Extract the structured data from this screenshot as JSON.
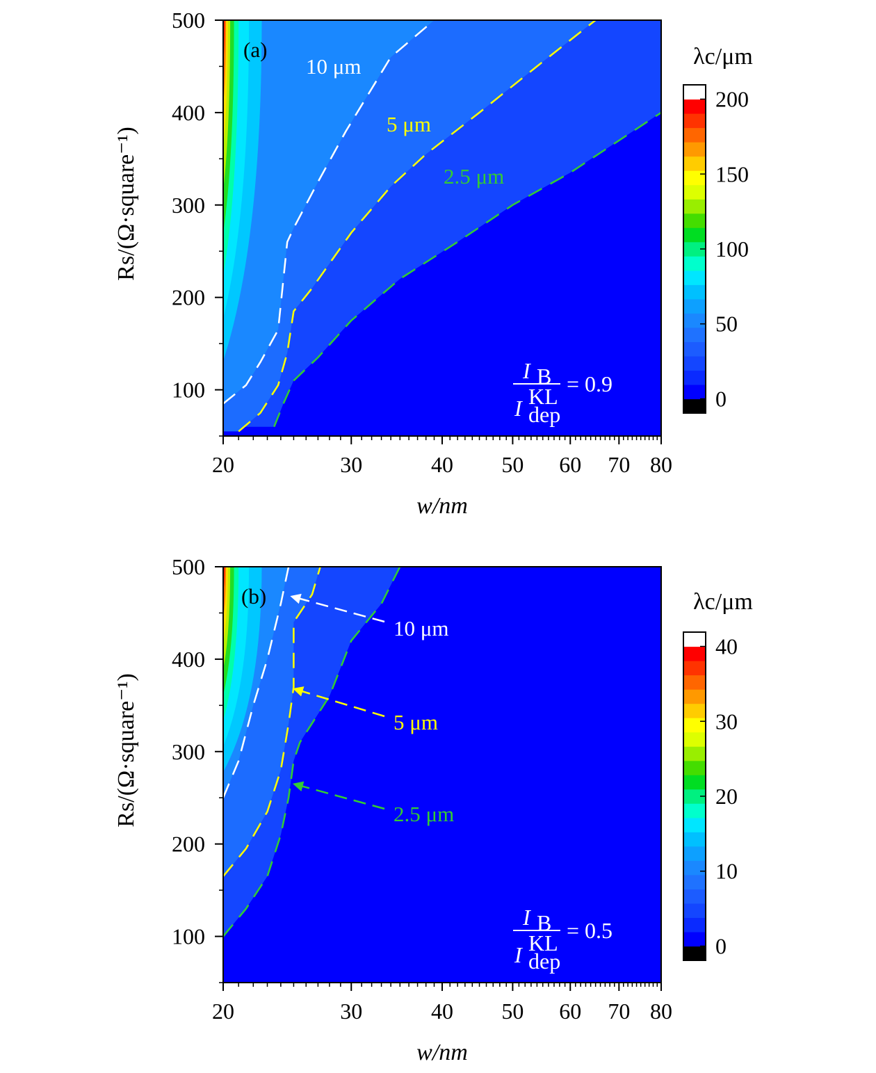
{
  "colors": {
    "background_blue": "#0000ff",
    "contour_white": "#ffffff",
    "contour_yellow": "#ffff00",
    "contour_green": "#33cc33",
    "colormap": [
      "#000000",
      "#0000ff",
      "#0a2aff",
      "#1446ff",
      "#1c5cff",
      "#1f72ff",
      "#1a88ff",
      "#0da0ff",
      "#00c0ff",
      "#00e6ff",
      "#00ffcc",
      "#00f080",
      "#00dd22",
      "#44dd00",
      "#99ee00",
      "#ddff00",
      "#ffff00",
      "#ffcc00",
      "#ff9900",
      "#ff6600",
      "#ff3300",
      "#ff0000",
      "#ffffff"
    ]
  },
  "chart_data": [
    {
      "type": "heatmap",
      "panel_label": "(a)",
      "xlabel": "w/nm",
      "ylabel": "Rs/(Ω·square⁻¹)",
      "x_scale": "log",
      "xlim": [
        20,
        80
      ],
      "ylim": [
        50,
        500
      ],
      "x_ticks": [
        "20",
        "30",
        "40",
        "50",
        "60",
        "70",
        "80"
      ],
      "y_ticks": [
        "100",
        "200",
        "300",
        "400",
        "500"
      ],
      "colorbar": {
        "label": "λc/μm",
        "range": [
          0,
          200
        ],
        "ticks": [
          "0",
          "50",
          "100",
          "150",
          "200"
        ]
      },
      "parameter": {
        "numerator": "I",
        "numerator_sub": "B",
        "denominator": "I",
        "denominator_sup": "KL",
        "denominator_sub": "dep",
        "value": "= 0.9"
      },
      "contours": [
        {
          "name": "10 μm",
          "color": "white",
          "points": [
            [
              20,
              85
            ],
            [
              21.5,
              105
            ],
            [
              22.5,
              130
            ],
            [
              23.8,
              165
            ],
            [
              24.5,
              260
            ],
            [
              25,
              275
            ],
            [
              27,
              325
            ],
            [
              29.5,
              380
            ],
            [
              34,
              460
            ],
            [
              39,
              500
            ]
          ]
        },
        {
          "name": "5 μm",
          "color": "yellow",
          "points": [
            [
              21,
              55
            ],
            [
              22.5,
              75
            ],
            [
              23.8,
              105
            ],
            [
              24.5,
              140
            ],
            [
              25,
              185
            ],
            [
              26.5,
              210
            ],
            [
              30,
              270
            ],
            [
              34,
              320
            ],
            [
              38,
              355
            ],
            [
              45,
              400
            ],
            [
              54,
              450
            ],
            [
              65,
              500
            ]
          ]
        },
        {
          "name": "2.5 μm",
          "color": "green",
          "points": [
            [
              23.5,
              60
            ],
            [
              24.2,
              85
            ],
            [
              25,
              110
            ],
            [
              27,
              135
            ],
            [
              30,
              175
            ],
            [
              35,
              220
            ],
            [
              42,
              260
            ],
            [
              50,
              300
            ],
            [
              60,
              335
            ],
            [
              80,
              400
            ]
          ]
        }
      ],
      "contour_labels": [
        "10 μm",
        "5 μm",
        "2.5 μm"
      ]
    },
    {
      "type": "heatmap",
      "panel_label": "(b)",
      "xlabel": "w/nm",
      "ylabel": "Rs/(Ω·square⁻¹)",
      "x_scale": "log",
      "xlim": [
        20,
        80
      ],
      "ylim": [
        50,
        500
      ],
      "x_ticks": [
        "20",
        "30",
        "40",
        "50",
        "60",
        "70",
        "80"
      ],
      "y_ticks": [
        "100",
        "200",
        "300",
        "400",
        "500"
      ],
      "colorbar": {
        "label": "λc/μm",
        "range": [
          0,
          40
        ],
        "ticks": [
          "0",
          "10",
          "20",
          "30",
          "40"
        ]
      },
      "parameter": {
        "numerator": "I",
        "numerator_sub": "B",
        "denominator": "I",
        "denominator_sup": "KL",
        "denominator_sub": "dep",
        "value": "= 0.5"
      },
      "contours": [
        {
          "name": "10 μm",
          "color": "white",
          "points": [
            [
              20,
              250
            ],
            [
              21,
              290
            ],
            [
              22,
              350
            ],
            [
              23,
              400
            ],
            [
              24,
              460
            ],
            [
              24.6,
              500
            ]
          ]
        },
        {
          "name": "5 μm",
          "color": "yellow",
          "points": [
            [
              20,
              165
            ],
            [
              21.5,
              195
            ],
            [
              23,
              235
            ],
            [
              24,
              280
            ],
            [
              24.6,
              330
            ],
            [
              25,
              370
            ],
            [
              25,
              440
            ],
            [
              26.5,
              470
            ],
            [
              27.2,
              500
            ]
          ]
        },
        {
          "name": "2.5 μm",
          "color": "green",
          "points": [
            [
              20,
              100
            ],
            [
              21.5,
              130
            ],
            [
              23,
              165
            ],
            [
              24,
              210
            ],
            [
              24.6,
              250
            ],
            [
              25,
              290
            ],
            [
              25.5,
              310
            ],
            [
              28,
              360
            ],
            [
              30,
              420
            ],
            [
              33,
              460
            ],
            [
              35,
              500
            ]
          ]
        }
      ],
      "contour_labels": [
        "10 μm",
        "5 μm",
        "2.5 μm"
      ],
      "annotation_arrows": [
        {
          "label": "10 μm",
          "color": "white",
          "target": [
            24.8,
            468
          ]
        },
        {
          "label": "5 μm",
          "color": "yellow",
          "target": [
            25.0,
            368
          ]
        },
        {
          "label": "2.5 μm",
          "color": "green",
          "target": [
            25.0,
            265
          ]
        }
      ]
    }
  ]
}
